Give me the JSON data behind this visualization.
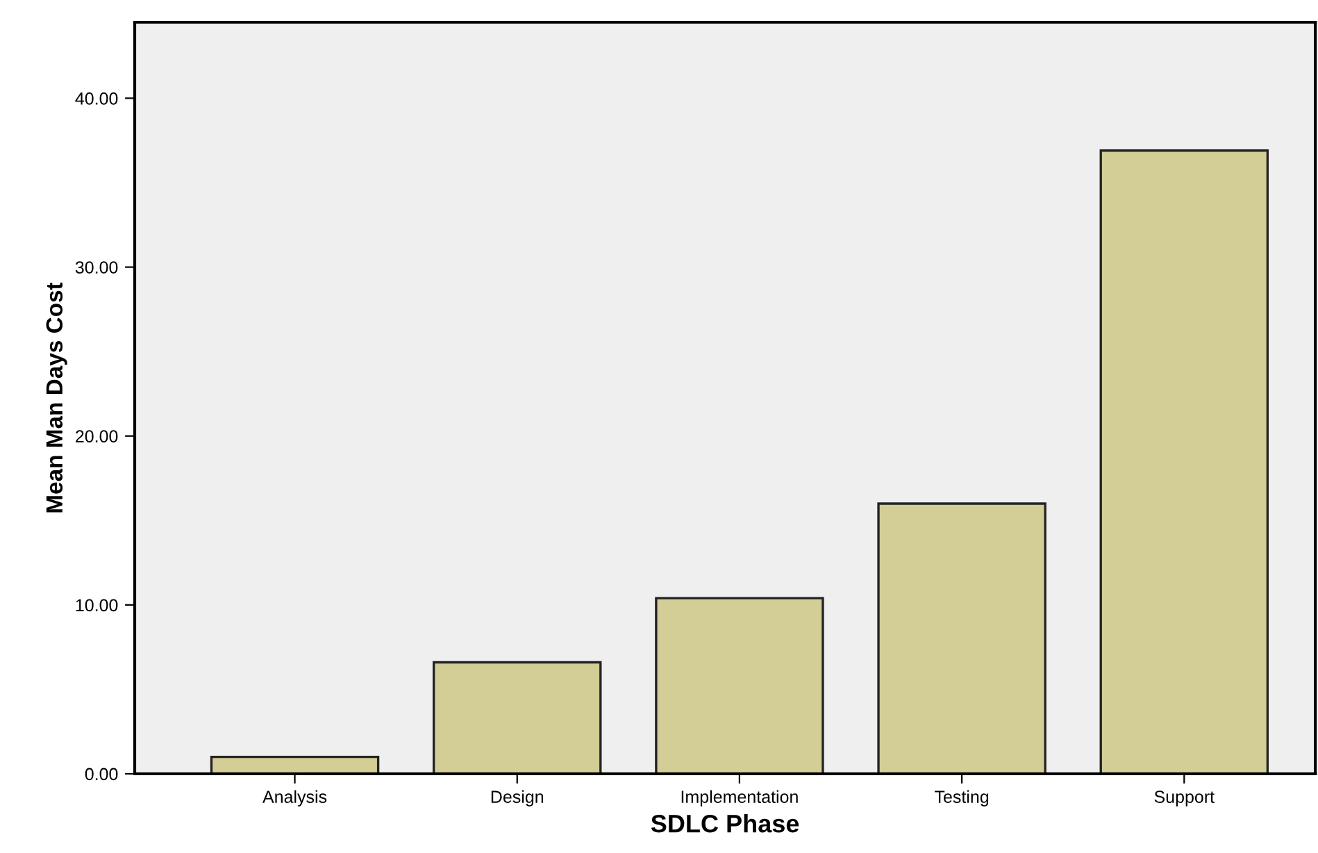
{
  "chart_data": {
    "type": "bar",
    "xlabel": "SDLC Phase",
    "ylabel": "Mean Man Days Cost",
    "categories": [
      "Analysis",
      "Design",
      "Implementation",
      "Testing",
      "Support"
    ],
    "values": [
      1.0,
      6.6,
      10.4,
      16.0,
      36.9
    ],
    "color": "#d3cd96",
    "ylim": [
      0,
      44.5
    ],
    "yticks": [
      {
        "value": 0,
        "label": "0.00"
      },
      {
        "value": 10,
        "label": "10.00"
      },
      {
        "value": 20,
        "label": "20.00"
      },
      {
        "value": 30,
        "label": "30.00"
      },
      {
        "value": 40,
        "label": "40.00"
      }
    ],
    "grid": false,
    "legend": false
  }
}
